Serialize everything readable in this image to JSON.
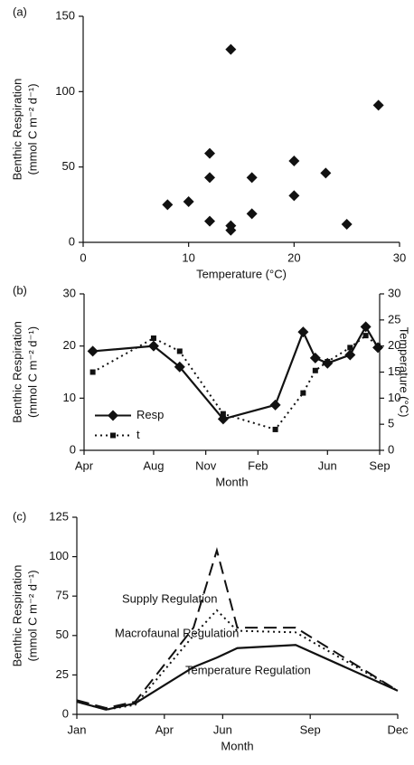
{
  "chart_data": [
    {
      "type": "scatter",
      "panel_label": "(a)",
      "xlabel": "Temperature (°C)",
      "ylabel": [
        "Benthic Respiration",
        "(mmol C m⁻² d⁻¹)"
      ],
      "x": [
        8,
        10,
        12,
        12,
        12,
        14,
        14,
        14,
        16,
        16,
        20,
        20,
        23,
        25,
        28
      ],
      "values": [
        25,
        27,
        59,
        43,
        14,
        128,
        11,
        8,
        43,
        19,
        54,
        31,
        46,
        12,
        91
      ],
      "color": "#111111",
      "marker": "diamond",
      "xlim": [
        0,
        30
      ],
      "xticks": [
        0,
        10,
        20,
        30
      ],
      "ylim": [
        0,
        150
      ],
      "yticks": [
        0,
        50,
        100,
        150
      ]
    },
    {
      "type": "line",
      "panel_label": "(b)",
      "xlabel": "Month",
      "ylabel": [
        "Benthic Respiration",
        "(mmol C m⁻² d⁻¹)"
      ],
      "y2label": "Temperature (°C)",
      "x": [
        0.5,
        4,
        5.5,
        8,
        11,
        12.6,
        13.3,
        14,
        15.3,
        16.2,
        16.9
      ],
      "series": [
        {
          "name": "Resp",
          "color": "#111111",
          "dash": "solid",
          "marker": "diamond",
          "values": [
            19,
            20,
            16,
            6,
            8.7,
            22.7,
            17.7,
            16.7,
            18.3,
            23.7,
            19.7
          ]
        },
        {
          "name": "t",
          "color": "#111111",
          "dash": "dotted",
          "marker": "square",
          "axis": "y2",
          "values": [
            15,
            21.5,
            19,
            7,
            4,
            11,
            15.3,
            17,
            19.7,
            22,
            20
          ]
        }
      ],
      "xlim": [
        0,
        17
      ],
      "xticks": [
        {
          "value": 0,
          "label": "Apr"
        },
        {
          "value": 4,
          "label": "Aug"
        },
        {
          "value": 7,
          "label": "Nov"
        },
        {
          "value": 10,
          "label": "Feb"
        },
        {
          "value": 14,
          "label": "Jun"
        },
        {
          "value": 17,
          "label": "Sep"
        }
      ],
      "ylim": [
        0,
        30
      ],
      "yticks": [
        0,
        10,
        20,
        30
      ],
      "y2lim": [
        0,
        30
      ],
      "y2ticks": [
        0,
        5,
        10,
        15,
        20,
        25,
        30
      ],
      "legend": "center left"
    },
    {
      "type": "line",
      "panel_label": "(c)",
      "xlabel": "Month",
      "ylabel": [
        "Benthic Respiration",
        "(mmol C m⁻² d⁻¹)"
      ],
      "x": [
        1,
        2,
        3,
        5,
        5.8,
        6.5,
        8.5,
        12
      ],
      "series": [
        {
          "name": "Supply Regulation",
          "color": "#111111",
          "dash": "dashed",
          "values": [
            9,
            4,
            8,
            55,
            104,
            55,
            55,
            15
          ]
        },
        {
          "name": "Macrofaunal Regulation",
          "color": "#111111",
          "dash": "dotted",
          "values": [
            8,
            3,
            6,
            50,
            66,
            53,
            52,
            15
          ]
        },
        {
          "name": "Temperature Regulation",
          "color": "#111111",
          "dash": "solid",
          "values": [
            8,
            3,
            7,
            30,
            36,
            42,
            44,
            15
          ]
        }
      ],
      "xlim": [
        1,
        12
      ],
      "xticks": [
        {
          "value": 1,
          "label": "Jan"
        },
        {
          "value": 4,
          "label": "Apr"
        },
        {
          "value": 6,
          "label": "Jun"
        },
        {
          "value": 9,
          "label": "Sep"
        },
        {
          "value": 12,
          "label": "Dec"
        }
      ],
      "ylim": [
        0,
        125
      ],
      "yticks": [
        0,
        25,
        50,
        75,
        100,
        125
      ],
      "legend": "inline"
    }
  ]
}
